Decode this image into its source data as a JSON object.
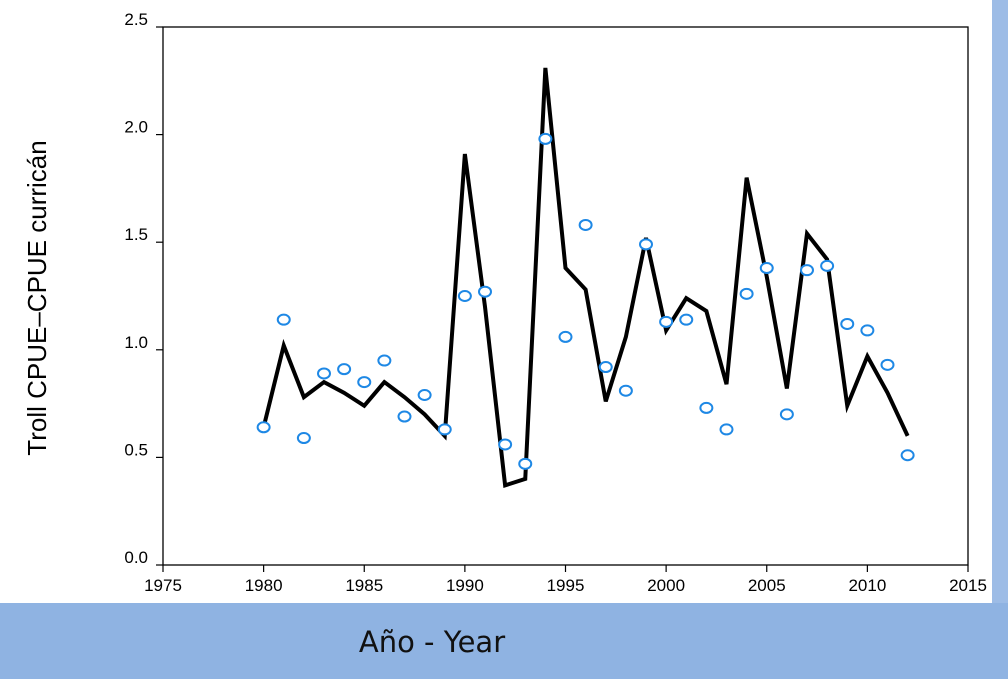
{
  "chart_data": {
    "type": "line",
    "ylabel": "Troll CPUE–CPUE curricán",
    "xlabel": "Año - Year",
    "xlim": [
      1975,
      2015
    ],
    "ylim": [
      0,
      2.5
    ],
    "x_ticks": [
      "1975",
      "1980",
      "1985",
      "1990",
      "1995",
      "2000",
      "2005",
      "2010",
      "2015"
    ],
    "y_ticks": [
      "0.0",
      "0.5",
      "1.0",
      "1.5",
      "2.0",
      "2.5"
    ],
    "grid": false,
    "colors": {
      "line": "#000000",
      "points": "#1e88e5",
      "band": "#8fb3e2"
    },
    "series": [
      {
        "type": "line",
        "x": [
          1980,
          1981,
          1982,
          1983,
          1984,
          1985,
          1986,
          1987,
          1988,
          1989,
          1990,
          1991,
          1992,
          1993,
          1994,
          1995,
          1996,
          1997,
          1998,
          1999,
          2000,
          2001,
          2002,
          2003,
          2004,
          2005,
          2006,
          2007,
          2008,
          2009,
          2010,
          2011,
          2012
        ],
        "y": [
          0.64,
          1.02,
          0.78,
          0.85,
          0.8,
          0.74,
          0.85,
          0.78,
          0.7,
          0.6,
          1.91,
          1.2,
          0.37,
          0.4,
          2.31,
          1.38,
          1.28,
          0.76,
          1.06,
          1.52,
          1.09,
          1.24,
          1.18,
          0.84,
          1.8,
          1.34,
          0.82,
          1.54,
          1.42,
          0.74,
          0.97,
          0.8,
          0.6
        ]
      },
      {
        "type": "scatter",
        "x": [
          1980,
          1981,
          1982,
          1983,
          1984,
          1985,
          1986,
          1987,
          1988,
          1989,
          1990,
          1991,
          1992,
          1993,
          1994,
          1995,
          1996,
          1997,
          1998,
          1999,
          2000,
          2001,
          2002,
          2003,
          2004,
          2005,
          2006,
          2007,
          2008,
          2009,
          2010,
          2011,
          2012
        ],
        "y": [
          0.64,
          1.14,
          0.59,
          0.89,
          0.91,
          0.85,
          0.95,
          0.69,
          0.79,
          0.63,
          1.25,
          1.27,
          0.56,
          0.47,
          1.98,
          1.06,
          1.58,
          0.92,
          0.81,
          1.49,
          1.13,
          1.14,
          0.73,
          0.63,
          1.26,
          1.38,
          0.7,
          1.37,
          1.39,
          1.12,
          1.09,
          0.93,
          0.51
        ]
      }
    ]
  }
}
